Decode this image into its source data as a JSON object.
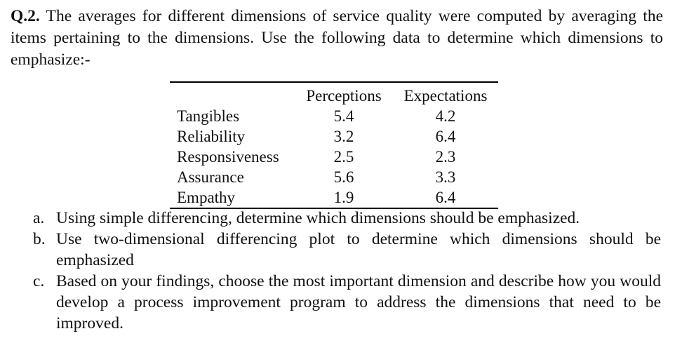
{
  "question": {
    "number": "Q.2.",
    "text": "The averages for different dimensions of service quality were computed by averaging the items pertaining to the dimensions. Use the following data to determine which dimensions to emphasize:-"
  },
  "table": {
    "headers": [
      "",
      "Perceptions",
      "Expectations"
    ],
    "rows": [
      {
        "dimension": "Tangibles",
        "perceptions": "5.4",
        "expectations": "4.2"
      },
      {
        "dimension": "Reliability",
        "perceptions": "3.2",
        "expectations": "6.4"
      },
      {
        "dimension": "Responsiveness",
        "perceptions": "2.5",
        "expectations": "2.3"
      },
      {
        "dimension": "Assurance",
        "perceptions": "5.6",
        "expectations": "3.3"
      },
      {
        "dimension": "Empathy",
        "perceptions": "1.9",
        "expectations": "6.4"
      }
    ]
  },
  "parts": [
    {
      "marker": "a.",
      "text": "Using simple differencing, determine which dimensions should be emphasized."
    },
    {
      "marker": "b.",
      "text": "Use two-dimensional differencing plot to determine which dimensions should be emphasized"
    },
    {
      "marker": "c.",
      "text": "Based on your findings, choose the most important dimension and describe how you would develop a process improvement program to address the dimensions that need to be improved."
    }
  ]
}
